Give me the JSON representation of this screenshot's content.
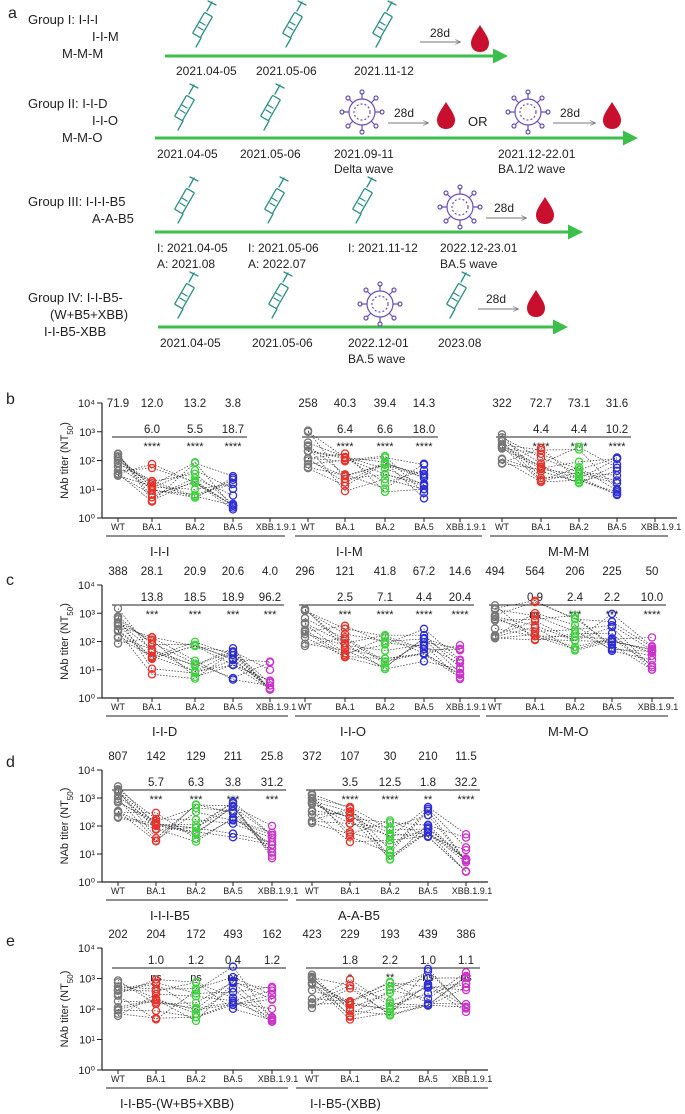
{
  "colors": {
    "arrow": "#3bbf4a",
    "syringe": "#2b8f86",
    "virus": "#6a4fb5",
    "drop": "#c8102e",
    "gray": "#777777",
    "red": "#e8322a",
    "green": "#3fd43f",
    "blue": "#2d2dd6",
    "magenta": "#cc33cc"
  },
  "icons": [
    "syringe-icon",
    "virus-icon",
    "blood-drop-icon"
  ],
  "panels": {
    "a": "a",
    "b": "b",
    "c": "c",
    "d": "d",
    "e": "e"
  },
  "timeline": {
    "g1": {
      "title": "Group I: I-I-I",
      "lines": [
        "I-I-M",
        "M-M-M"
      ],
      "dates": [
        "2021.04-05",
        "2021.05-06",
        "2021.11-12"
      ],
      "interval": "28d"
    },
    "g2": {
      "title": "Group II: I-I-D",
      "lines": [
        "I-I-O",
        "M-M-O"
      ],
      "dates": [
        "2021.04-05",
        "2021.05-06"
      ],
      "wave1": "2021.09-11",
      "wave1_name": "Delta wave",
      "wave2": "2021.12-22.01",
      "wave2_name": "BA.1/2 wave",
      "interval": "28d",
      "or": "OR"
    },
    "g3": {
      "title": "Group III: I-I-I-B5",
      "lines": [
        "A-A-B5"
      ],
      "d1": "I: 2021.04-05",
      "d1b": "A: 2021.08",
      "d2": "I: 2021.05-06",
      "d2b": "A: 2022.07",
      "d3": "I: 2021.11-12",
      "wave": "2022.12-23.01",
      "wave_name": "BA.5 wave",
      "interval": "28d"
    },
    "g4": {
      "title": "Group IV: I-I-B5-",
      "lines": [
        "(W+B5+XBB)",
        "I-I-B5-XBB"
      ],
      "dates": [
        "2021.04-05",
        "2021.05-06"
      ],
      "wave": "2022.12-01",
      "wave_name": "BA.5 wave",
      "d4": "2023.08",
      "interval": "28d"
    }
  },
  "chart_data": [
    {
      "id": "b",
      "type": "scatter",
      "ylabel": "NAb titer (NT50)",
      "yticks": [
        "10⁰",
        "10¹",
        "10²",
        "10³",
        "10⁴"
      ],
      "ylim_log10": [
        0,
        4
      ],
      "categories": [
        "WT",
        "BA.1",
        "BA.2",
        "BA.5",
        "XBB.1.9.1"
      ],
      "groups": [
        {
          "name": "I-I-I",
          "gmt": [
            "71.9",
            "12.0",
            "13.2",
            "3.8",
            ""
          ],
          "fold": [
            "",
            "6.0",
            "5.5",
            "18.7",
            ""
          ],
          "sig": [
            "",
            "****",
            "****",
            "****",
            ""
          ],
          "medians_log10": [
            2.0,
            1.2,
            1.3,
            0.8,
            null
          ]
        },
        {
          "name": "I-I-M",
          "gmt": [
            "258",
            "40.3",
            "39.4",
            "14.3",
            ""
          ],
          "fold": [
            "",
            "6.4",
            "6.6",
            "18.0",
            ""
          ],
          "sig": [
            "",
            "****",
            "****",
            "****",
            ""
          ],
          "medians_log10": [
            2.4,
            1.6,
            1.6,
            1.2,
            null
          ]
        },
        {
          "name": "M-M-M",
          "gmt": [
            "322",
            "72.7",
            "73.1",
            "31.6",
            ""
          ],
          "fold": [
            "",
            "4.4",
            "4.4",
            "10.2",
            ""
          ],
          "sig": [
            "",
            "****",
            "****",
            "****",
            ""
          ],
          "medians_log10": [
            2.5,
            1.9,
            1.9,
            1.5,
            null
          ]
        }
      ]
    },
    {
      "id": "c",
      "type": "scatter",
      "ylabel": "NAb titer (NT50)",
      "yticks": [
        "10⁰",
        "10¹",
        "10²",
        "10³",
        "10⁴"
      ],
      "ylim_log10": [
        0,
        4
      ],
      "categories": [
        "WT",
        "BA.1",
        "BA.2",
        "BA.5",
        "XBB.1.9.1"
      ],
      "groups": [
        {
          "name": "I-I-D",
          "gmt": [
            "388",
            "28.1",
            "20.9",
            "20.6",
            "4.0"
          ],
          "fold": [
            "",
            "13.8",
            "18.5",
            "18.9",
            "96.2"
          ],
          "sig": [
            "",
            "***",
            "***",
            "***",
            "***"
          ],
          "medians_log10": [
            2.6,
            1.5,
            1.3,
            1.3,
            0.6
          ]
        },
        {
          "name": "I-I-O",
          "gmt": [
            "296",
            "121",
            "41.8",
            "67.2",
            "14.6"
          ],
          "fold": [
            "",
            "2.5",
            "7.1",
            "4.4",
            "20.4"
          ],
          "sig": [
            "",
            "***",
            "****",
            "****",
            "****"
          ],
          "medians_log10": [
            2.5,
            2.1,
            1.6,
            1.8,
            1.2
          ]
        },
        {
          "name": "M-M-O",
          "gmt": [
            "494",
            "564",
            "206",
            "225",
            "50"
          ],
          "fold": [
            "",
            "0.9",
            "2.4",
            "2.2",
            "10.0"
          ],
          "sig": [
            "",
            "ns",
            "***",
            "***",
            "****"
          ],
          "medians_log10": [
            2.7,
            2.75,
            2.3,
            2.35,
            1.7
          ]
        }
      ]
    },
    {
      "id": "d",
      "type": "scatter",
      "ylabel": "NAb titer (NT50)",
      "yticks": [
        "10⁰",
        "10¹",
        "10²",
        "10³",
        "10⁴"
      ],
      "ylim_log10": [
        0,
        4
      ],
      "categories": [
        "WT",
        "BA.1",
        "BA.2",
        "BA.5",
        "XBB.1.9.1"
      ],
      "groups": [
        {
          "name": "I-I-I-B5",
          "gmt": [
            "807",
            "142",
            "129",
            "211",
            "25.8"
          ],
          "fold": [
            "",
            "5.7",
            "6.3",
            "3.8",
            "31.2"
          ],
          "sig": [
            "",
            "***",
            "***",
            "***",
            "***"
          ],
          "medians_log10": [
            2.9,
            2.15,
            2.1,
            2.3,
            1.4
          ]
        },
        {
          "name": "A-A-B5",
          "gmt": [
            "372",
            "107",
            "30",
            "210",
            "11.5"
          ],
          "fold": [
            "",
            "3.5",
            "12.5",
            "1.8",
            "32.2"
          ],
          "sig": [
            "",
            "****",
            "****",
            "**",
            "****"
          ],
          "medians_log10": [
            2.55,
            2.0,
            1.5,
            2.3,
            1.05
          ]
        }
      ]
    },
    {
      "id": "e",
      "type": "scatter",
      "ylabel": "NAb titer (NT50)",
      "yticks": [
        "10⁰",
        "10¹",
        "10²",
        "10³",
        "10⁴"
      ],
      "ylim_log10": [
        0,
        4
      ],
      "categories": [
        "WT",
        "BA.1",
        "BA.2",
        "BA.5",
        "XBB.1.9.1"
      ],
      "groups": [
        {
          "name": "I-I-B5-(W+B5+XBB)",
          "gmt": [
            "202",
            "204",
            "172",
            "493",
            "162"
          ],
          "fold": [
            "",
            "1.0",
            "1.2",
            "0.4",
            "1.2"
          ],
          "sig": [
            "",
            "ns",
            "ns",
            "ns",
            ""
          ],
          "medians_log10": [
            2.3,
            2.3,
            2.2,
            2.7,
            2.2
          ]
        },
        {
          "name": "I-I-B5-(XBB)",
          "gmt": [
            "423",
            "229",
            "193",
            "439",
            "386"
          ],
          "fold": [
            "",
            "1.8",
            "2.2",
            "1.0",
            "1.1"
          ],
          "sig": [
            "",
            "*",
            "**",
            "ns",
            "ns"
          ],
          "medians_log10": [
            2.6,
            2.35,
            2.3,
            2.65,
            2.6
          ]
        }
      ]
    }
  ]
}
